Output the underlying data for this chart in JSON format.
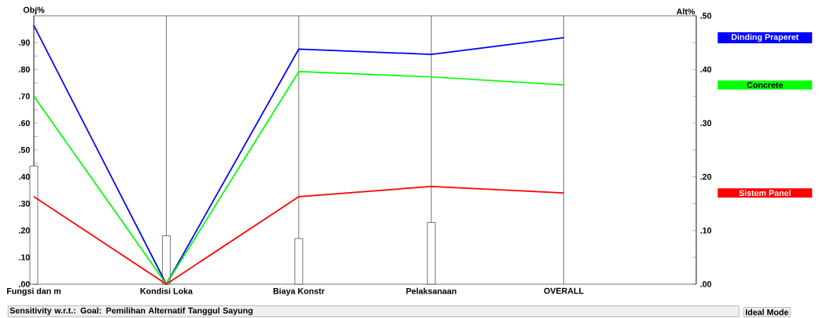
{
  "chart_data": {
    "type": "line",
    "ylabel": "Obj%",
    "y2label": "Alt%",
    "categories": [
      "Fungsi dan m",
      "Kondisi Loka",
      "Biaya Konstr",
      "Pelaksanaan",
      "OVERALL"
    ],
    "ylim": [
      0,
      1
    ],
    "yticks": [
      {
        "value": 0,
        "label": ".00"
      },
      {
        "value": 0.05,
        "label": null
      },
      {
        "value": 0.1,
        "label": ".10"
      },
      {
        "value": 0.15,
        "label": null
      },
      {
        "value": 0.2,
        "label": ".20"
      },
      {
        "value": 0.25,
        "label": null
      },
      {
        "value": 0.3,
        "label": ".30"
      },
      {
        "value": 0.35,
        "label": null
      },
      {
        "value": 0.4,
        "label": ".40"
      },
      {
        "value": 0.45,
        "label": null
      },
      {
        "value": 0.5,
        "label": ".50"
      },
      {
        "value": 0.55,
        "label": null
      },
      {
        "value": 0.6,
        "label": ".60"
      },
      {
        "value": 0.65,
        "label": null
      },
      {
        "value": 0.7,
        "label": ".70"
      },
      {
        "value": 0.75,
        "label": null
      },
      {
        "value": 0.8,
        "label": ".80"
      },
      {
        "value": 0.85,
        "label": null
      },
      {
        "value": 0.9,
        "label": ".90"
      },
      {
        "value": 0.95,
        "label": null
      }
    ],
    "y2lim": [
      0,
      0.5
    ],
    "y2ticks": [
      {
        "value": 0,
        "label": ".00"
      },
      {
        "value": 0.05,
        "label": null
      },
      {
        "value": 0.1,
        "label": ".10"
      },
      {
        "value": 0.15,
        "label": null
      },
      {
        "value": 0.2,
        "label": ".20"
      },
      {
        "value": 0.25,
        "label": null
      },
      {
        "value": 0.3,
        "label": ".30"
      },
      {
        "value": 0.35,
        "label": null
      },
      {
        "value": 0.4,
        "label": ".40"
      },
      {
        "value": 0.45,
        "label": null
      },
      {
        "value": 0.5,
        "label": ".50"
      }
    ],
    "grid": "x",
    "series": [
      {
        "type": "bar",
        "color": "#ffffff",
        "values": [
          0.44,
          0.18,
          0.17,
          0.23,
          null
        ]
      },
      {
        "name": "Dinding Praperet",
        "axis": "y2",
        "color": "#0000ff",
        "values": [
          0.482,
          0.0,
          0.438,
          0.428,
          0.459
        ]
      },
      {
        "name": "Concrete",
        "axis": "y2",
        "color": "#00ff00",
        "values": [
          0.35,
          0.0,
          0.396,
          0.386,
          0.371
        ]
      },
      {
        "name": "Sistem Panel",
        "axis": "y2",
        "color": "#ff0000",
        "values": [
          0.163,
          0.0,
          0.163,
          0.182,
          0.17
        ]
      }
    ],
    "annotations": [
      "Sensitivity w.r.t.: Goal: Pemilihan Alternatif Tanggul Sayung",
      "Ideal Mode"
    ]
  }
}
